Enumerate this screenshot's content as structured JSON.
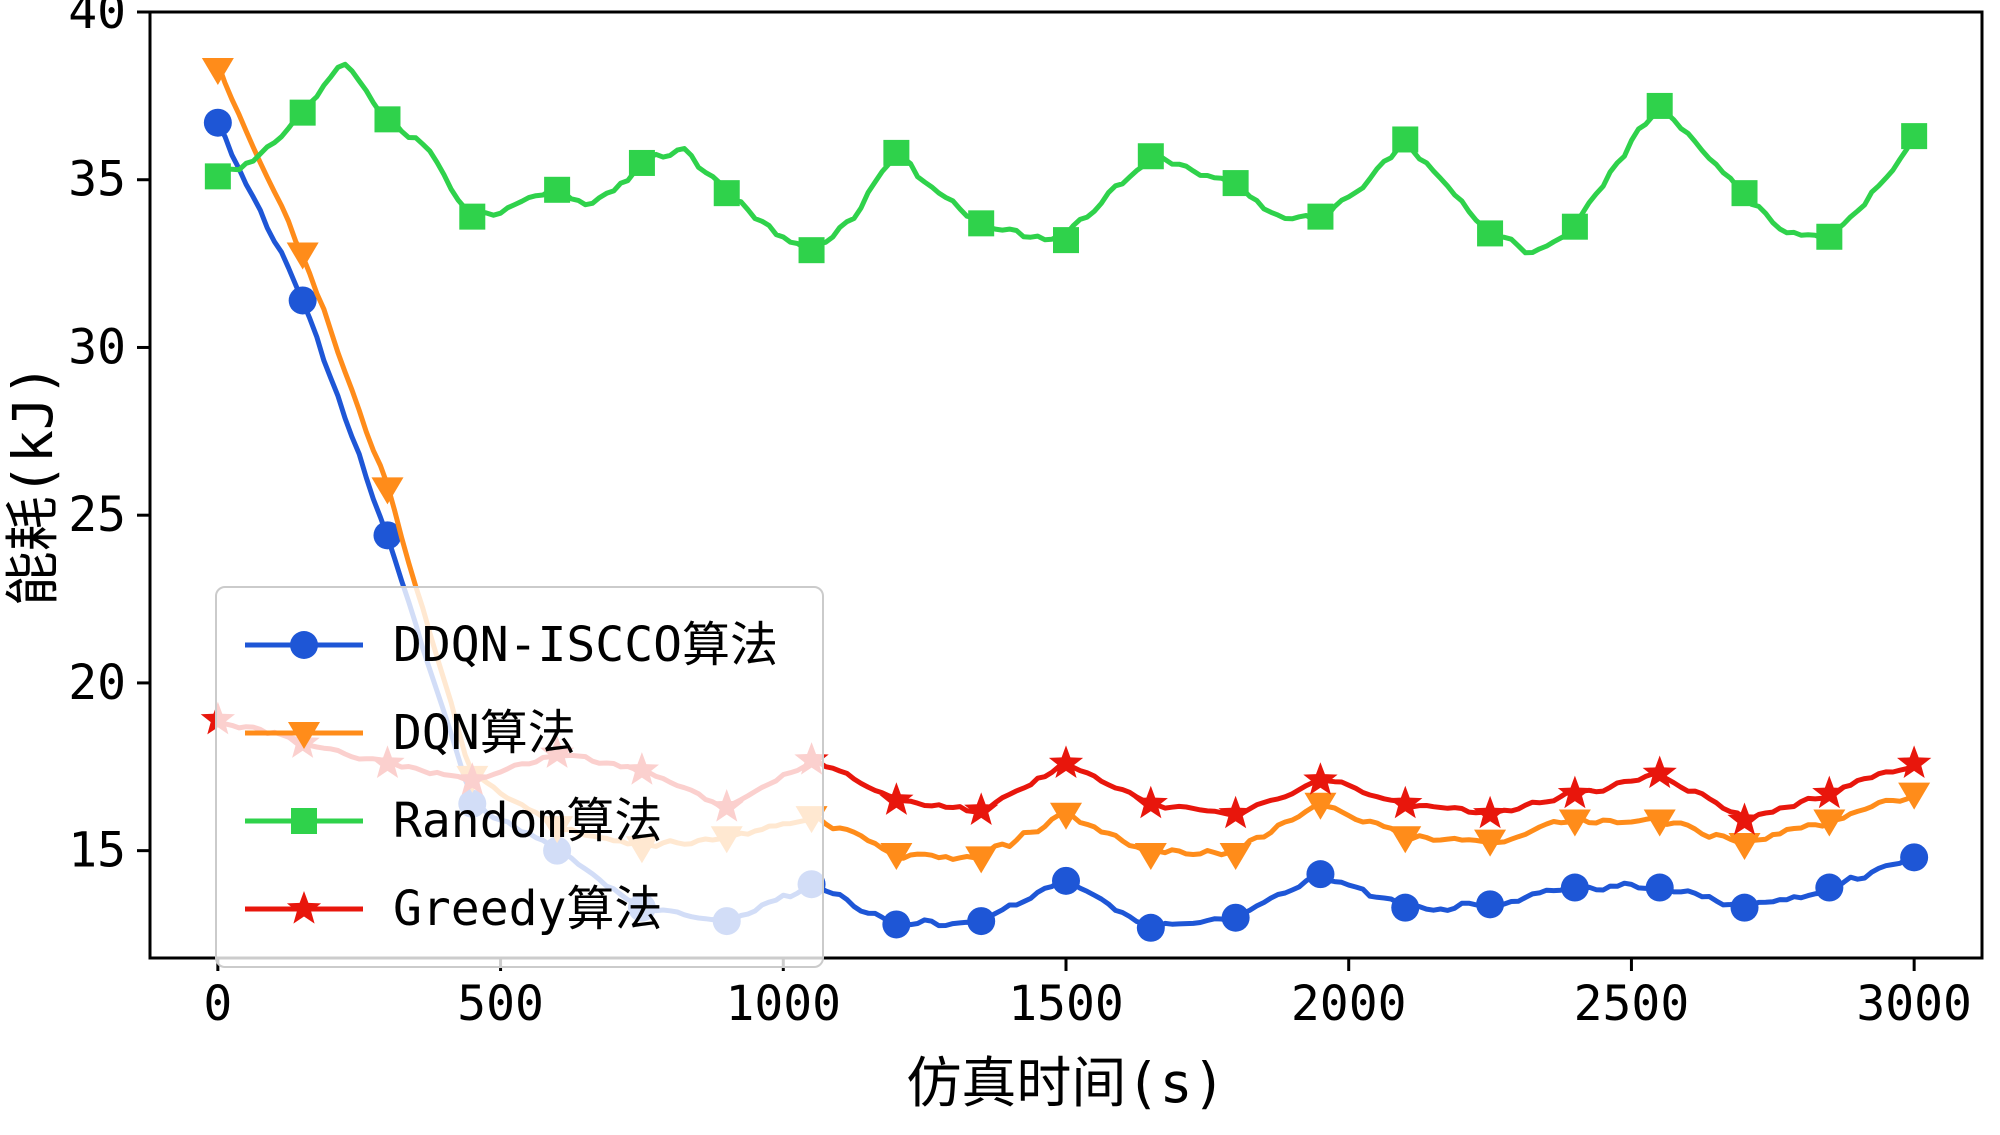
{
  "chart_data": {
    "type": "line",
    "title": "",
    "xlabel": "仿真时间(s)",
    "ylabel": "能耗(kJ)",
    "xlim": [
      -120,
      3120
    ],
    "ylim": [
      11.8,
      40
    ],
    "xticks": [
      0,
      500,
      1000,
      1500,
      2000,
      2500,
      3000
    ],
    "yticks": [
      15,
      20,
      25,
      30,
      35,
      40
    ],
    "grid": false,
    "legend_position": "lower-left",
    "series": [
      {
        "name": "DDQN-ISCCO算法",
        "color": "#1e56d6",
        "marker": "circle",
        "marker_every": 1,
        "line_width": 5,
        "noise": 0.22,
        "x": [
          0,
          150,
          300,
          450,
          600,
          750,
          900,
          1050,
          1200,
          1350,
          1500,
          1650,
          1800,
          1950,
          2100,
          2250,
          2400,
          2550,
          2700,
          2850,
          3000
        ],
        "y": [
          36.7,
          31.4,
          24.4,
          16.4,
          15.0,
          13.3,
          12.9,
          14.0,
          12.8,
          12.9,
          14.1,
          12.7,
          13.0,
          14.3,
          13.3,
          13.4,
          13.9,
          13.9,
          13.3,
          13.9,
          14.8
        ]
      },
      {
        "name": "DQN算法",
        "color": "#ff8c1a",
        "marker": "triangle-down",
        "marker_every": 1,
        "line_width": 5,
        "noise": 0.22,
        "x": [
          0,
          150,
          300,
          450,
          600,
          750,
          900,
          1050,
          1200,
          1350,
          1500,
          1650,
          1800,
          1950,
          2100,
          2250,
          2400,
          2550,
          2700,
          2850,
          3000
        ],
        "y": [
          38.3,
          32.8,
          25.8,
          17.2,
          15.7,
          15.1,
          15.4,
          16.0,
          14.9,
          14.8,
          16.1,
          14.9,
          14.9,
          16.4,
          15.4,
          15.3,
          15.9,
          15.9,
          15.2,
          15.9,
          16.7
        ]
      },
      {
        "name": "Random算法",
        "color": "#2fd24b",
        "marker": "square",
        "marker_every": 2,
        "line_width": 5,
        "noise": 0.3,
        "x": [
          0,
          75,
          150,
          225,
          300,
          375,
          450,
          525,
          600,
          675,
          750,
          825,
          900,
          975,
          1050,
          1125,
          1200,
          1275,
          1350,
          1425,
          1500,
          1575,
          1650,
          1725,
          1800,
          1875,
          1950,
          2025,
          2100,
          2175,
          2250,
          2325,
          2400,
          2475,
          2550,
          2625,
          2700,
          2775,
          2850,
          2925,
          3000
        ],
        "y": [
          35.1,
          35.6,
          37.0,
          38.6,
          36.8,
          35.9,
          33.9,
          34.1,
          34.7,
          34.3,
          35.5,
          35.9,
          34.6,
          33.5,
          32.9,
          33.9,
          35.8,
          34.6,
          33.7,
          33.3,
          33.2,
          34.6,
          35.7,
          35.3,
          34.9,
          33.8,
          33.9,
          34.8,
          36.2,
          34.8,
          33.4,
          32.9,
          33.6,
          35.5,
          37.2,
          35.9,
          34.6,
          33.4,
          33.3,
          34.5,
          36.3
        ]
      },
      {
        "name": "Greedy算法",
        "color": "#e8160c",
        "marker": "star",
        "marker_every": 1,
        "line_width": 5,
        "noise": 0.18,
        "x": [
          0,
          150,
          300,
          450,
          600,
          750,
          900,
          1050,
          1200,
          1350,
          1500,
          1650,
          1800,
          1950,
          2100,
          2250,
          2400,
          2550,
          2700,
          2850,
          3000
        ],
        "y": [
          18.9,
          18.2,
          17.6,
          17.1,
          17.9,
          17.4,
          16.3,
          17.7,
          16.5,
          16.2,
          17.6,
          16.4,
          16.1,
          17.1,
          16.4,
          16.1,
          16.7,
          17.3,
          15.9,
          16.7,
          17.6
        ]
      }
    ]
  }
}
